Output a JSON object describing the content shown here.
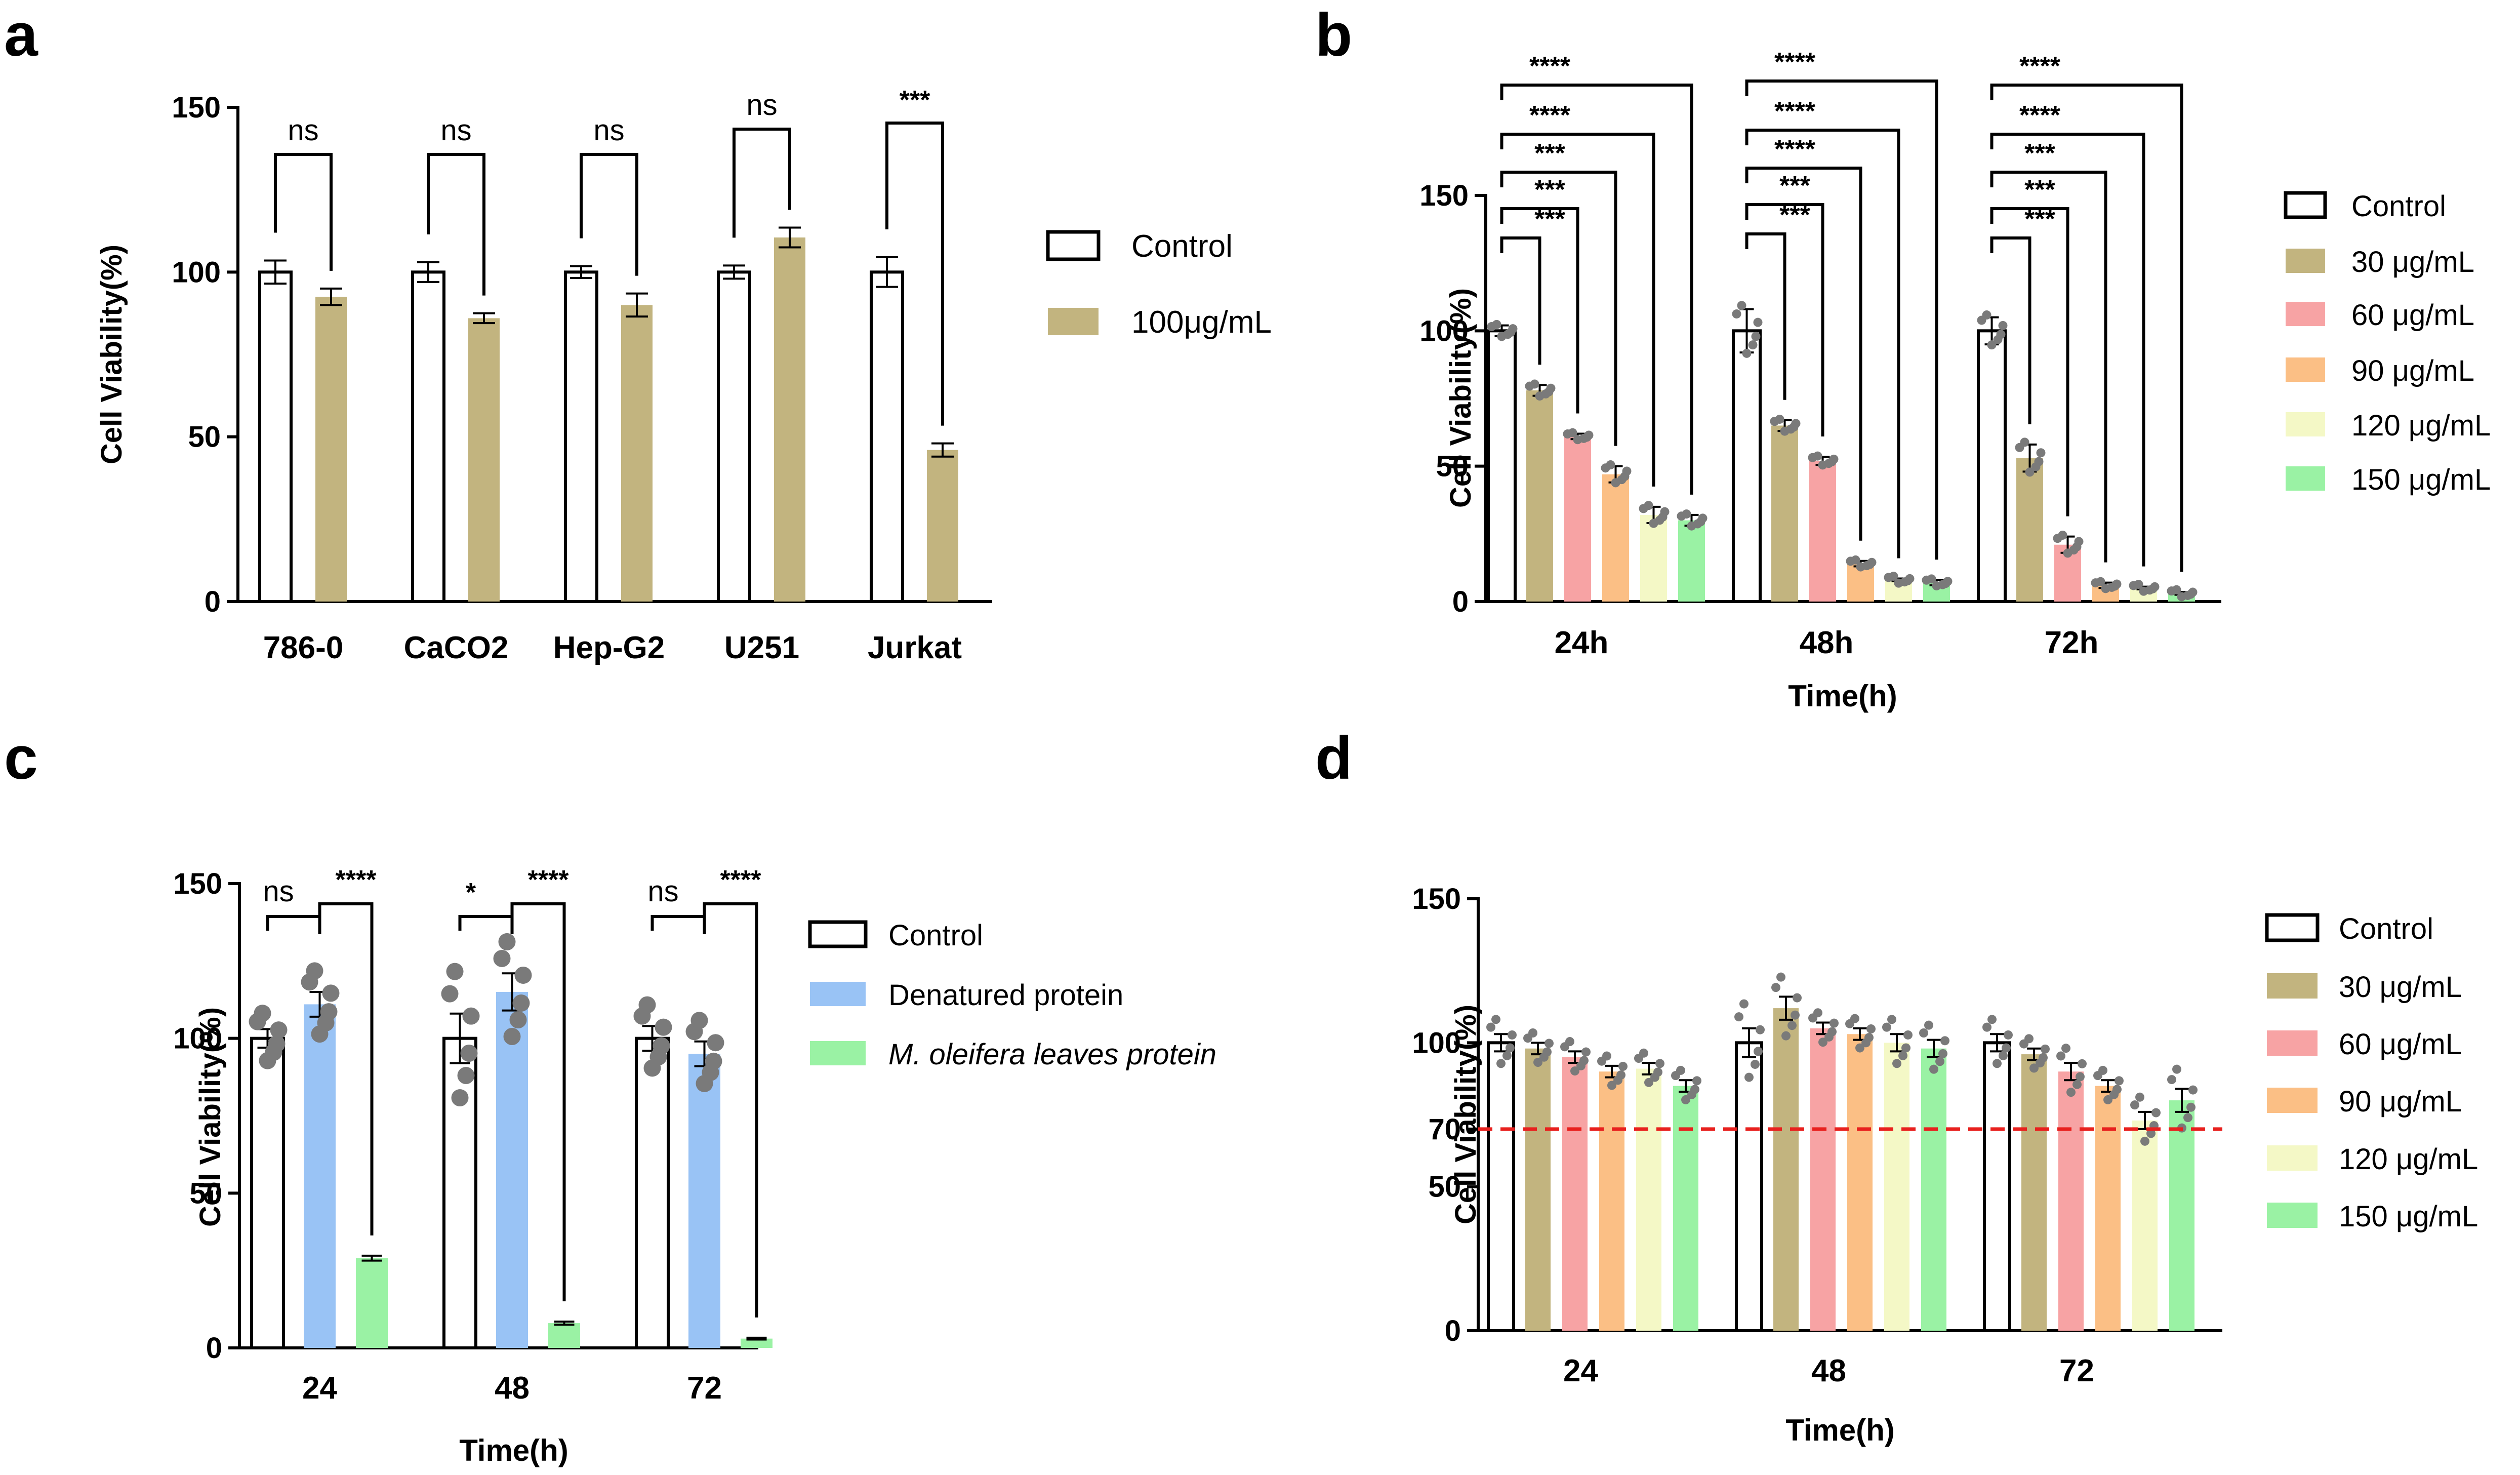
{
  "panels": [
    {
      "letter": "a",
      "ylabel": "Cell Viability(%)",
      "xlabel": "",
      "ticks": [
        "0",
        "50",
        "100",
        "150"
      ],
      "legend": [
        "Control",
        "100μg/mL"
      ]
    },
    {
      "letter": "b",
      "ylabel": "Cell Viability(%)",
      "xlabel": "Time(h)",
      "ticks": [
        "0",
        "50",
        "100",
        "150"
      ],
      "legend": [
        "Control",
        "30 μg/mL",
        "60 μg/mL",
        "90 μg/mL",
        "120 μg/mL",
        "150 μg/mL"
      ]
    },
    {
      "letter": "c",
      "ylabel": "Cell Viability(%)",
      "xlabel": "Time(h)",
      "ticks": [
        "0",
        "50",
        "100",
        "150"
      ],
      "legend": [
        "Control",
        "Denatured protein",
        "M. oleifera leaves protein"
      ]
    },
    {
      "letter": "d",
      "ylabel": "Cell Viability(%)",
      "xlabel": "Time(h)",
      "ticks": [
        "0",
        "50",
        "70",
        "100",
        "150"
      ],
      "legend": [
        "Control",
        "30 μg/mL",
        "60 μg/mL",
        "90 μg/mL",
        "120 μg/mL",
        "150 μg/mL"
      ]
    }
  ],
  "colors": {
    "control": "#ffffff",
    "c30": "#c2b47f",
    "c60": "#f7a3a4",
    "c90": "#fbbf85",
    "c120": "#f4f8c6",
    "c150": "#9af2a4",
    "denatured": "#99c3f5",
    "moleifera": "#9af2a4",
    "dot": "#7a7a7a",
    "threshold": "#e8201e"
  },
  "chart_data": [
    {
      "panel": "a",
      "type": "bar",
      "categories": [
        "786-0",
        "CaCO2",
        "Hep-G2",
        "U251",
        "Jurkat"
      ],
      "series": [
        {
          "name": "Control",
          "values": [
            100,
            100,
            100,
            100,
            100
          ],
          "errors": [
            3.5,
            3,
            1.8,
            2,
            4.5
          ]
        },
        {
          "name": "100μg/mL",
          "values": [
            92.5,
            86,
            90,
            110.5,
            46
          ],
          "errors": [
            2.5,
            1.5,
            3.5,
            3,
            2
          ]
        }
      ],
      "significance": [
        "ns",
        "ns",
        "ns",
        "ns",
        "***"
      ],
      "ylabel": "Cell Viability(%)",
      "ylim": [
        0,
        150
      ]
    },
    {
      "panel": "b",
      "type": "bar",
      "categories": [
        "24h",
        "48h",
        "72h"
      ],
      "series": [
        {
          "name": "Control",
          "values": [
            100,
            100,
            100
          ],
          "errors": [
            2,
            8,
            5
          ]
        },
        {
          "name": "30 μg/mL",
          "values": [
            78,
            65,
            53
          ],
          "errors": [
            2,
            2,
            5
          ]
        },
        {
          "name": "60 μg/mL",
          "values": [
            61,
            52,
            21
          ],
          "errors": [
            1,
            1.5,
            3
          ]
        },
        {
          "name": "90 μg/mL",
          "values": [
            47,
            14,
            6
          ],
          "errors": [
            3,
            1,
            1
          ]
        },
        {
          "name": "120 μg/mL",
          "values": [
            32,
            8,
            5
          ],
          "errors": [
            3,
            0.5,
            0.5
          ]
        },
        {
          "name": "150 μg/mL",
          "values": [
            30,
            7,
            3
          ],
          "errors": [
            2,
            1,
            0.5
          ]
        }
      ],
      "significance": [
        [
          "***",
          "***",
          "***",
          "****",
          "****"
        ],
        [
          "***",
          "***",
          "****",
          "****",
          "****"
        ],
        [
          "***",
          "***",
          "***",
          "****",
          "****"
        ]
      ],
      "xlabel": "Time(h)",
      "ylabel": "Cell Viability(%)",
      "ylim": [
        0,
        150
      ]
    },
    {
      "panel": "c",
      "type": "bar",
      "categories": [
        "24",
        "48",
        "72"
      ],
      "series": [
        {
          "name": "Control",
          "values": [
            100,
            100,
            100
          ],
          "errors": [
            3,
            8,
            4
          ]
        },
        {
          "name": "Denatured protein",
          "values": [
            111,
            115,
            95
          ],
          "errors": [
            4,
            6,
            4
          ]
        },
        {
          "name": "M. oleifera leaves protein",
          "values": [
            29,
            8,
            3
          ],
          "errors": [
            0.8,
            0.5,
            0.3
          ]
        }
      ],
      "significance": [
        [
          "ns",
          "****"
        ],
        [
          "*",
          "****"
        ],
        [
          "ns",
          "****"
        ]
      ],
      "xlabel": "Time(h)",
      "ylabel": "Cell Viability(%)",
      "ylim": [
        0,
        150
      ]
    },
    {
      "panel": "d",
      "type": "bar",
      "categories": [
        "24",
        "48",
        "72"
      ],
      "series": [
        {
          "name": "Control",
          "values": [
            100,
            100,
            100
          ],
          "errors": [
            3,
            5,
            3
          ]
        },
        {
          "name": "30 μg/mL",
          "values": [
            98,
            112,
            96
          ],
          "errors": [
            2,
            4,
            2
          ]
        },
        {
          "name": "60 μg/mL",
          "values": [
            95,
            105,
            90
          ],
          "errors": [
            2,
            2,
            3
          ]
        },
        {
          "name": "90 μg/mL",
          "values": [
            90,
            103,
            85
          ],
          "errors": [
            2,
            2,
            2
          ]
        },
        {
          "name": "120 μg/mL",
          "values": [
            91,
            100,
            73
          ],
          "errors": [
            2,
            3,
            3
          ]
        },
        {
          "name": "150 μg/mL",
          "values": [
            85,
            98,
            80
          ],
          "errors": [
            2,
            3,
            4
          ]
        }
      ],
      "threshold": 70,
      "xlabel": "Time(h)",
      "ylabel": "Cell Viability(%)",
      "ylim": [
        0,
        150
      ]
    }
  ]
}
